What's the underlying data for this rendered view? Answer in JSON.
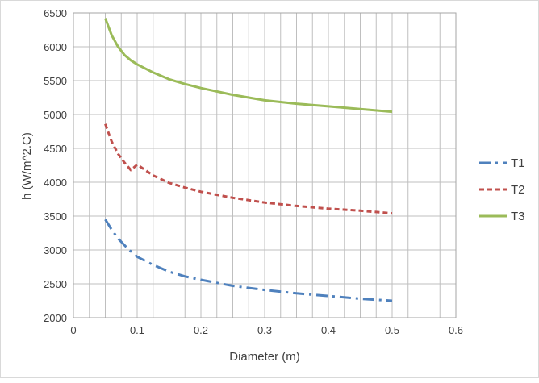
{
  "chart_data": {
    "type": "line",
    "xlabel": "Diameter (m)",
    "ylabel": "h (W/m^2.C)",
    "xlim": [
      0,
      0.6
    ],
    "ylim": [
      2000,
      6500
    ],
    "x_ticks": [
      "0",
      "0.1",
      "0.2",
      "0.3",
      "0.4",
      "0.5",
      "0.6"
    ],
    "y_ticks": [
      "2000",
      "2500",
      "3000",
      "3500",
      "4000",
      "4500",
      "5000",
      "5500",
      "6000",
      "6500"
    ],
    "grid": true,
    "legend_position": "right",
    "x": [
      0.05,
      0.06,
      0.07,
      0.08,
      0.09,
      0.1,
      0.125,
      0.15,
      0.175,
      0.2,
      0.25,
      0.3,
      0.35,
      0.4,
      0.45,
      0.5
    ],
    "series": [
      {
        "name": "T1",
        "color": "#4f81bd",
        "dash": "dash-dot",
        "values": [
          3450,
          3300,
          3170,
          3070,
          2980,
          2900,
          2780,
          2680,
          2610,
          2560,
          2470,
          2410,
          2360,
          2320,
          2280,
          2250
        ]
      },
      {
        "name": "T2",
        "color": "#c0504d",
        "dash": "dash",
        "values": [
          4860,
          4600,
          4420,
          4290,
          4180,
          4260,
          4100,
          3990,
          3920,
          3860,
          3770,
          3700,
          3650,
          3610,
          3580,
          3540
        ]
      },
      {
        "name": "T3",
        "color": "#9bbb59",
        "dash": "solid",
        "values": [
          6420,
          6170,
          6000,
          5880,
          5800,
          5740,
          5620,
          5520,
          5450,
          5390,
          5290,
          5210,
          5160,
          5120,
          5080,
          5040
        ]
      }
    ]
  }
}
